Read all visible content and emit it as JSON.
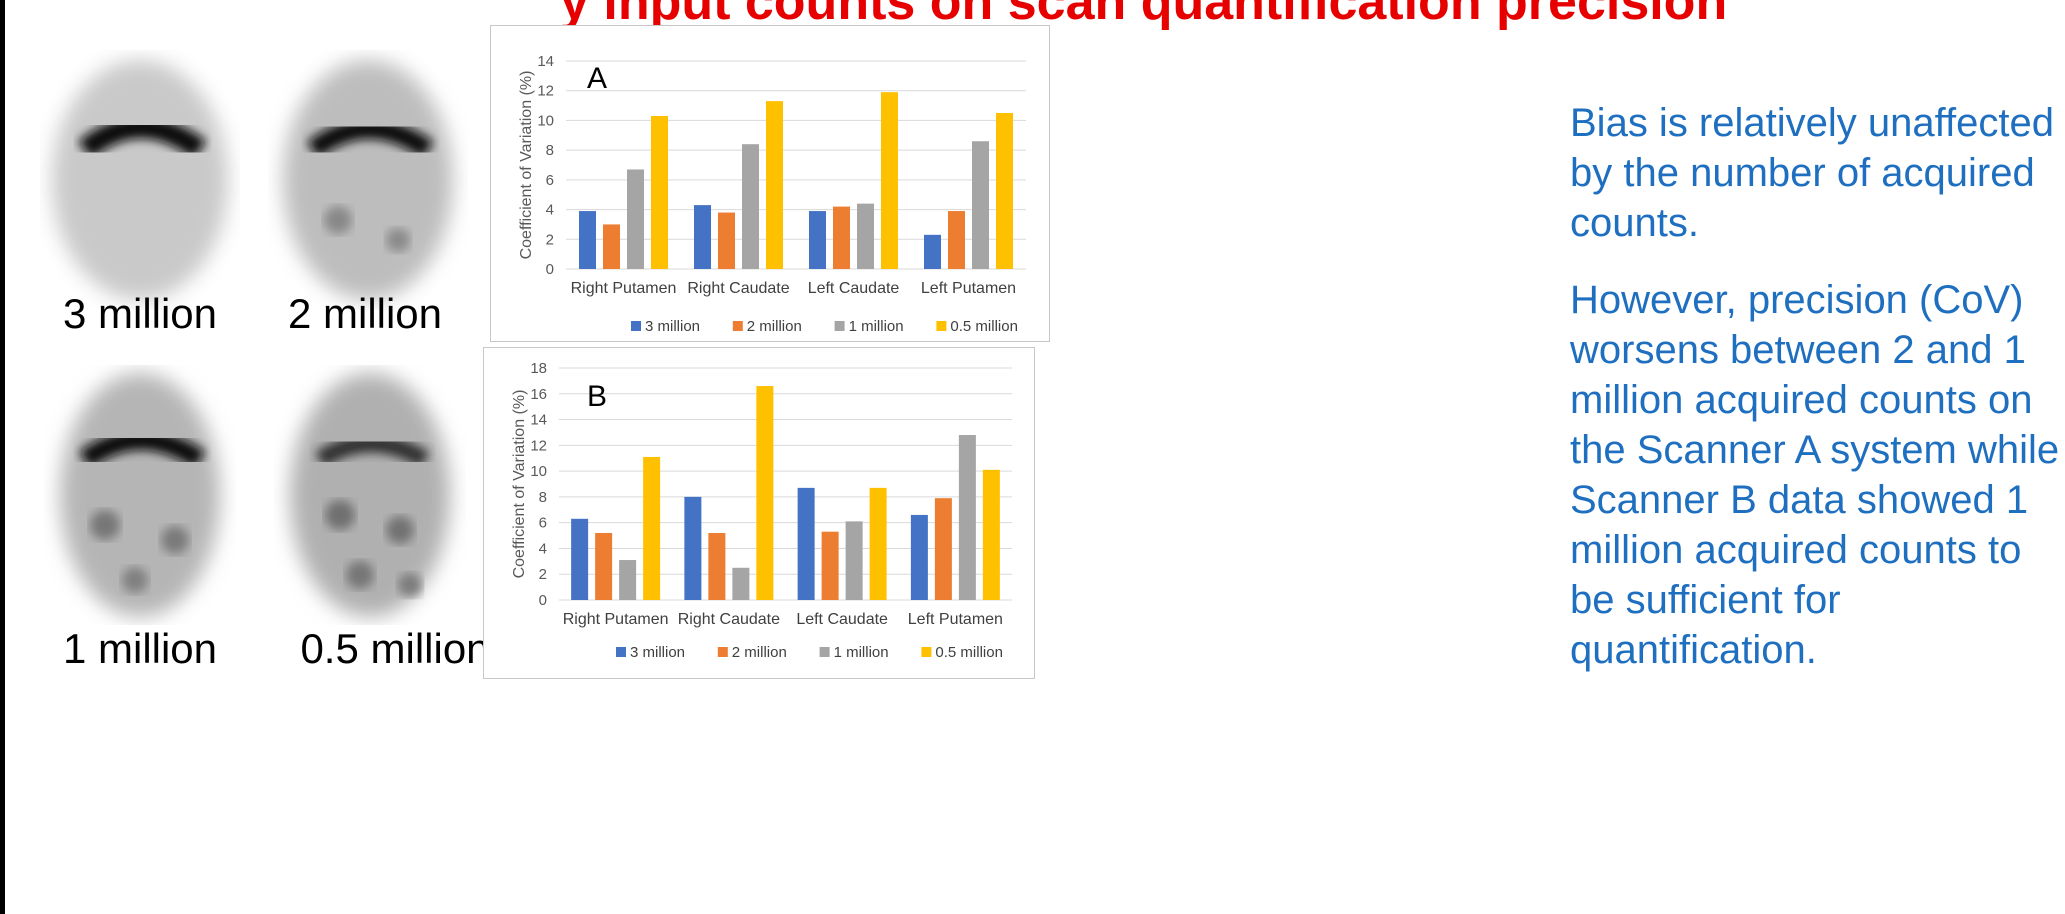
{
  "title": "y input counts on scan quantification precision",
  "images": {
    "labels": [
      "3 million",
      "2 million",
      "1 million",
      "0.5 million"
    ]
  },
  "caption": {
    "p1": "Bias is relatively unaffected by the number of acquired counts.",
    "p2": "However, precision (CoV) worsens between 2 and 1 million acquired counts on the Scanner A system while Scanner B data showed 1 million acquired counts to be sufficient for quantification."
  },
  "colors": {
    "s3": "#4472c4",
    "s2": "#ed7d31",
    "s1": "#a5a5a5",
    "s05": "#ffc000",
    "title": "#e60000",
    "caption": "#1f6fc0"
  },
  "chart_data": [
    {
      "type": "bar",
      "panel_label": "A",
      "categories": [
        "Right Putamen",
        "Right Caudate",
        "Left Caudate",
        "Left Putamen"
      ],
      "series": [
        {
          "name": "3 million",
          "values": [
            3.9,
            4.3,
            3.9,
            2.3
          ]
        },
        {
          "name": "2 million",
          "values": [
            3.0,
            3.8,
            4.2,
            3.9
          ]
        },
        {
          "name": "1 million",
          "values": [
            6.7,
            8.4,
            4.4,
            8.6
          ]
        },
        {
          "name": "0.5 million",
          "values": [
            10.3,
            11.3,
            11.9,
            10.5
          ]
        }
      ],
      "ylabel": "Coefficient of Variation (%)",
      "ylim": [
        0,
        14
      ],
      "ytick_step": 2,
      "grid": true,
      "legend": "bottom"
    },
    {
      "type": "bar",
      "panel_label": "B",
      "categories": [
        "Right Putamen",
        "Right Caudate",
        "Left Caudate",
        "Left Putamen"
      ],
      "series": [
        {
          "name": "3 million",
          "values": [
            6.3,
            8.0,
            8.7,
            6.6
          ]
        },
        {
          "name": "2 million",
          "values": [
            5.2,
            5.2,
            5.3,
            7.9
          ]
        },
        {
          "name": "1 million",
          "values": [
            3.1,
            2.5,
            6.1,
            12.8
          ]
        },
        {
          "name": "0.5 million",
          "values": [
            11.1,
            16.6,
            8.7,
            10.1
          ]
        }
      ],
      "ylabel": "Coefficient of Variation (%)",
      "ylim": [
        0,
        18
      ],
      "ytick_step": 2,
      "grid": true,
      "legend": "bottom"
    }
  ]
}
